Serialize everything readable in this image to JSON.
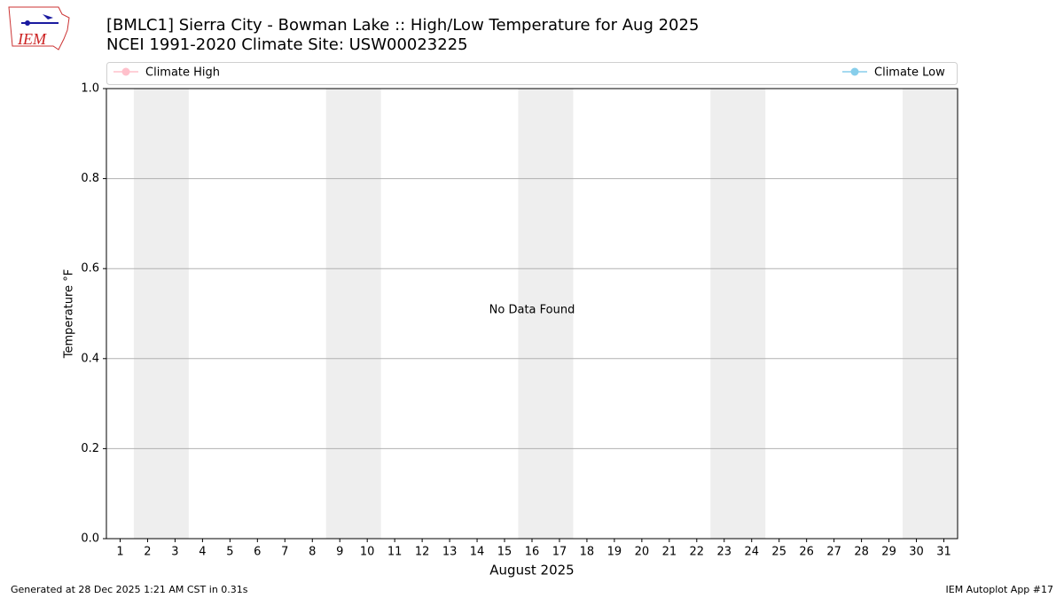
{
  "chart_data": {
    "type": "line",
    "title": "[BMLC1] Sierra City - Bowman Lake :: High/Low Temperature for Aug 2025",
    "subtitle": "NCEI 1991-2020 Climate Site: USW00023225",
    "y_label": "Temperature °F",
    "x_label": "August 2025",
    "annotation": "No Data Found",
    "categories": [
      "1",
      "2",
      "3",
      "4",
      "5",
      "6",
      "7",
      "8",
      "9",
      "10",
      "11",
      "12",
      "13",
      "14",
      "15",
      "16",
      "17",
      "18",
      "19",
      "20",
      "21",
      "22",
      "23",
      "24",
      "25",
      "26",
      "27",
      "28",
      "29",
      "30",
      "31"
    ],
    "series": [
      {
        "name": "Climate High",
        "color": "#ffc0cb",
        "values": [
          null,
          null,
          null,
          null,
          null,
          null,
          null,
          null,
          null,
          null,
          null,
          null,
          null,
          null,
          null,
          null,
          null,
          null,
          null,
          null,
          null,
          null,
          null,
          null,
          null,
          null,
          null,
          null,
          null,
          null,
          null
        ]
      },
      {
        "name": "Climate Low",
        "color": "#87ceeb",
        "values": [
          null,
          null,
          null,
          null,
          null,
          null,
          null,
          null,
          null,
          null,
          null,
          null,
          null,
          null,
          null,
          null,
          null,
          null,
          null,
          null,
          null,
          null,
          null,
          null,
          null,
          null,
          null,
          null,
          null,
          null,
          null
        ]
      }
    ],
    "weekend_shading": [
      [
        "2",
        "3"
      ],
      [
        "9",
        "10"
      ],
      [
        "16",
        "17"
      ],
      [
        "23",
        "24"
      ],
      [
        "30",
        "31"
      ]
    ],
    "shading_color": "#eeeeee",
    "ylim": [
      0,
      1
    ],
    "yticks": [
      {
        "value": 0,
        "label": "0.0"
      },
      0.2,
      0.4,
      0.6,
      0.8,
      {
        "value": 1,
        "label": "1.0"
      }
    ],
    "grid": true,
    "logo_text": "IEM",
    "footer_left": "Generated at 28 Dec 2025 1:21 AM CST in 0.31s",
    "footer_right": "IEM Autoplot App #17"
  }
}
